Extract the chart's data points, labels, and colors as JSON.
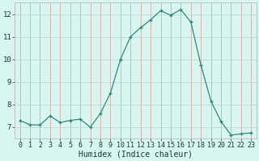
{
  "x": [
    0,
    1,
    2,
    3,
    4,
    5,
    6,
    7,
    8,
    9,
    10,
    11,
    12,
    13,
    14,
    15,
    16,
    17,
    18,
    19,
    20,
    21,
    22,
    23
  ],
  "y": [
    7.3,
    7.1,
    7.1,
    7.5,
    7.2,
    7.3,
    7.35,
    7.0,
    7.6,
    8.5,
    10.0,
    11.0,
    11.4,
    11.75,
    12.15,
    11.95,
    12.2,
    11.65,
    9.75,
    8.15,
    7.25,
    6.65,
    6.7,
    6.75
  ],
  "line_color": "#2e8b7a",
  "marker": "s",
  "marker_size": 2.5,
  "bg_color": "#d8f5f0",
  "grid_color_major": "#c8a8a8",
  "grid_color_minor": "#c0d8d5",
  "xlabel": "Humidex (Indice chaleur)",
  "xlim": [
    -0.5,
    23.5
  ],
  "ylim": [
    6.5,
    12.5
  ],
  "yticks": [
    7,
    8,
    9,
    10,
    11,
    12
  ],
  "xticks": [
    0,
    1,
    2,
    3,
    4,
    5,
    6,
    7,
    8,
    9,
    10,
    11,
    12,
    13,
    14,
    15,
    16,
    17,
    18,
    19,
    20,
    21,
    22,
    23
  ],
  "font_color": "#1a3535",
  "label_fontsize": 7,
  "tick_fontsize": 6
}
